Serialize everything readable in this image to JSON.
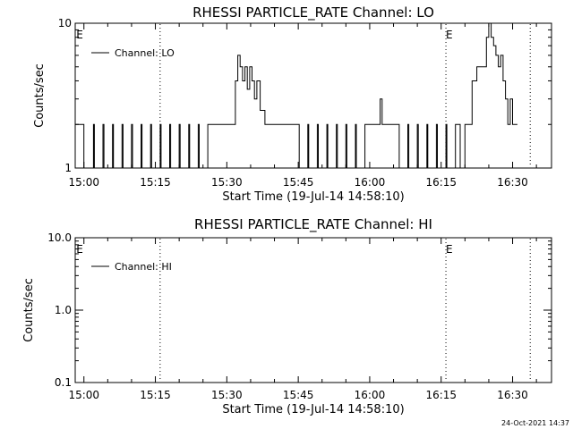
{
  "footer": {
    "timestamp": "24-Oct-2021 14:37"
  },
  "chart_data": [
    {
      "type": "line",
      "title": "RHESSI PARTICLE_RATE Channel: LO",
      "xlabel": "Start Time (19-Jul-14 14:58:10)",
      "ylabel": "Counts/sec",
      "xlim_minutes": [
        -1.83,
        98.17
      ],
      "ylim": [
        1,
        10
      ],
      "yscale": "log",
      "xtick_labels": [
        "15:00",
        "15:15",
        "15:30",
        "15:45",
        "16:00",
        "16:15",
        "16:30"
      ],
      "xtick_minutes": [
        0,
        15,
        30,
        45,
        60,
        75,
        90
      ],
      "ytick_labels": [
        "1",
        "10"
      ],
      "ytick_values": [
        1,
        10
      ],
      "legend": {
        "entries": [
          "Channel: LO"
        ],
        "placement": "top-left"
      },
      "event_lines_minutes": [
        16.0,
        76.0,
        93.7
      ],
      "event_markers": [
        {
          "label": "E",
          "x_minutes": -1.6
        },
        {
          "label": "E",
          "x_minutes": 76.0
        }
      ],
      "series": [
        {
          "name": "Channel: LO",
          "x": [
            -1.8,
            -0.3,
            0.0,
            2.0,
            2.2,
            4.0,
            4.2,
            6.0,
            6.2,
            8.0,
            8.2,
            10.0,
            10.2,
            12.0,
            12.2,
            14.0,
            14.2,
            16.0,
            16.2,
            18.0,
            18.2,
            20.0,
            20.2,
            22.0,
            22.2,
            24.0,
            24.2,
            26.0,
            26.2,
            31.0,
            31.8,
            32.3,
            32.8,
            33.3,
            33.8,
            34.3,
            34.8,
            35.3,
            35.8,
            36.3,
            37.0,
            38.0,
            45.0,
            45.2,
            47.0,
            47.2,
            49.0,
            49.2,
            51.0,
            51.2,
            53.0,
            53.2,
            55.0,
            55.2,
            57.0,
            57.2,
            59.0,
            60.0,
            61.5,
            62.2,
            62.6,
            63.0,
            64.0,
            66.0,
            66.2,
            68.0,
            68.2,
            70.0,
            70.2,
            72.0,
            72.2,
            74.0,
            74.2,
            76.0,
            76.2,
            78.0,
            79.0,
            80.0,
            81.5,
            82.5,
            83.5,
            84.5,
            85.0,
            85.5,
            86.0,
            86.5,
            87.0,
            87.5,
            88.0,
            88.5,
            89.0,
            89.5,
            90.0,
            91.0
          ],
          "values": [
            2,
            2,
            1,
            2,
            1,
            2,
            1,
            2,
            1,
            2,
            1,
            2,
            1,
            2,
            1,
            2,
            1,
            2,
            1,
            2,
            1,
            2,
            1,
            2,
            1,
            2,
            1,
            2,
            2,
            2,
            4,
            6,
            5,
            4,
            5,
            3.5,
            5,
            4,
            3,
            4,
            2.5,
            2,
            2,
            1,
            2,
            1,
            2,
            1,
            2,
            1,
            2,
            1,
            2,
            1,
            2,
            1,
            2,
            2,
            2,
            3,
            2,
            2,
            2,
            2,
            1,
            2,
            1,
            2,
            1,
            2,
            1,
            2,
            1,
            2,
            1,
            2,
            1,
            2,
            4,
            5,
            5,
            8,
            10,
            8,
            7,
            6,
            5,
            6,
            4,
            3,
            2,
            3,
            2,
            2
          ]
        }
      ]
    },
    {
      "type": "line",
      "title": "RHESSI PARTICLE_RATE Channel: HI",
      "xlabel": "Start Time (19-Jul-14 14:58:10)",
      "ylabel": "Counts/sec",
      "xlim_minutes": [
        -1.83,
        98.17
      ],
      "ylim": [
        0.1,
        10.0
      ],
      "yscale": "log",
      "xtick_labels": [
        "15:00",
        "15:15",
        "15:30",
        "15:45",
        "16:00",
        "16:15",
        "16:30"
      ],
      "xtick_minutes": [
        0,
        15,
        30,
        45,
        60,
        75,
        90
      ],
      "ytick_labels": [
        "0.1",
        "1.0",
        "10.0"
      ],
      "ytick_values": [
        0.1,
        1.0,
        10.0
      ],
      "legend": {
        "entries": [
          "Channel: HI"
        ],
        "placement": "top-left"
      },
      "event_lines_minutes": [
        16.0,
        76.0,
        93.7
      ],
      "event_markers": [
        {
          "label": "E",
          "x_minutes": -1.6
        },
        {
          "label": "E",
          "x_minutes": 76.0
        }
      ],
      "series": [
        {
          "name": "Channel: HI",
          "x": [],
          "values": []
        }
      ]
    }
  ]
}
